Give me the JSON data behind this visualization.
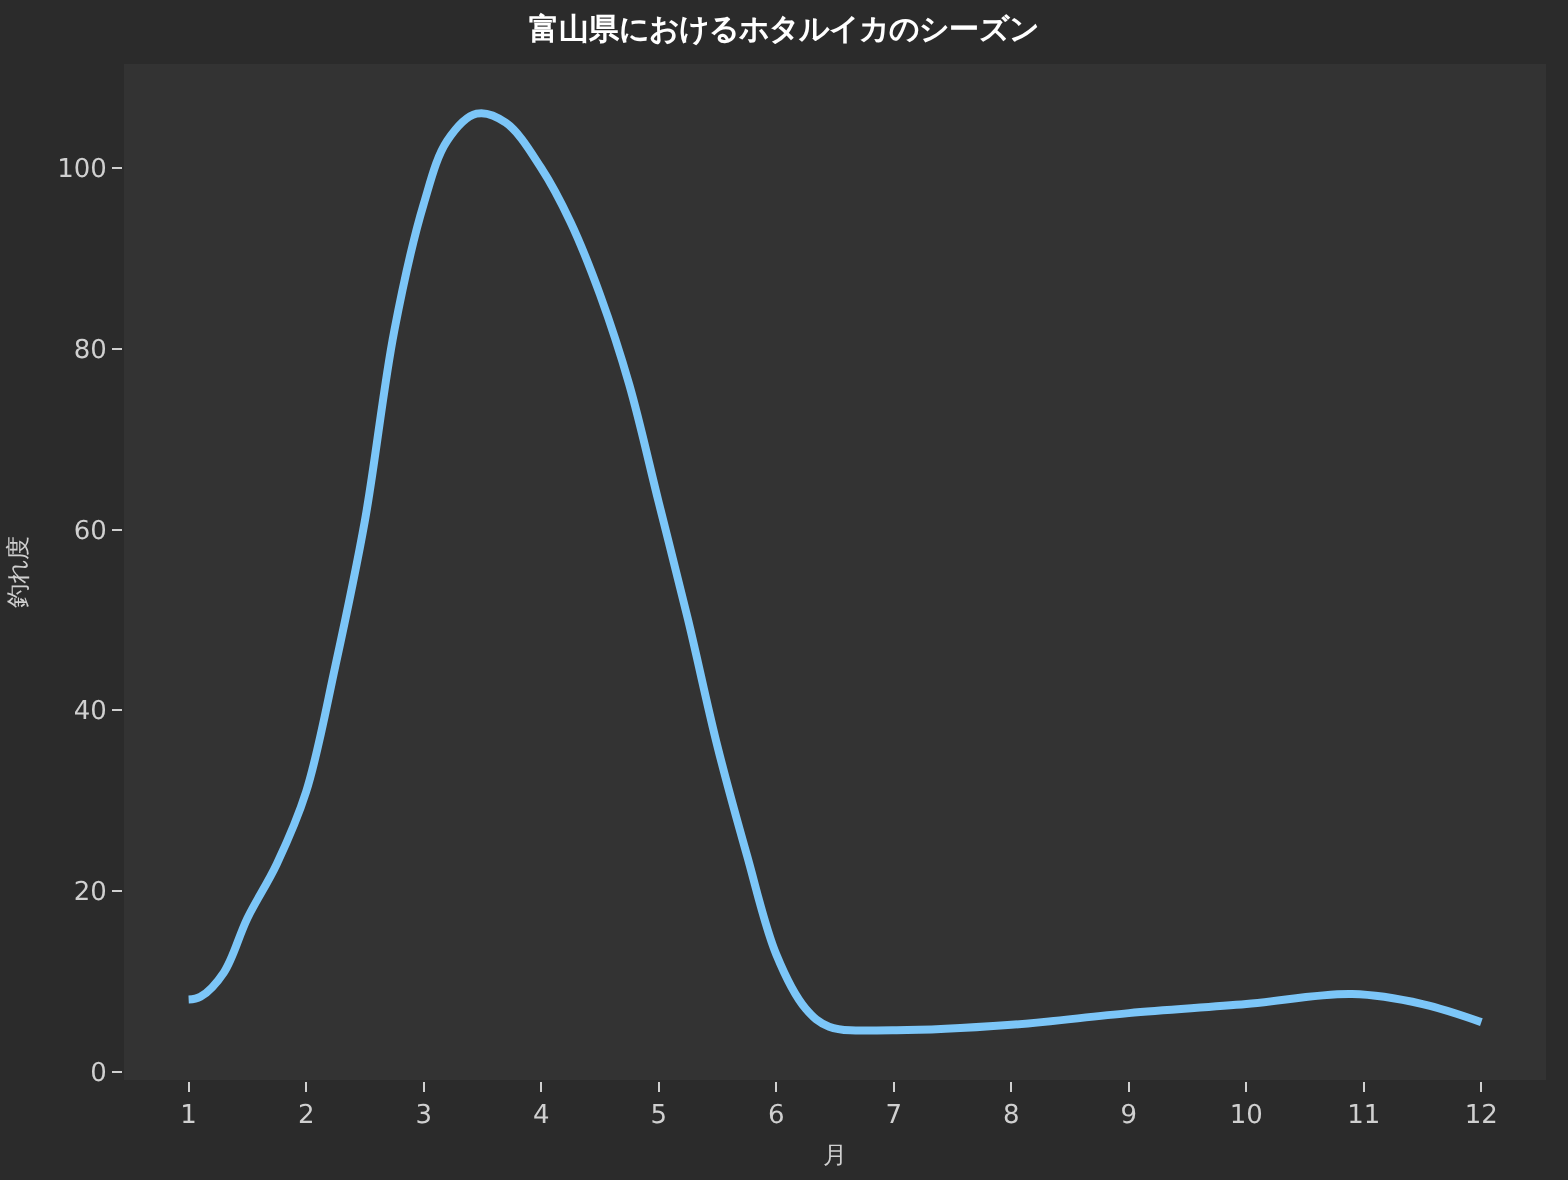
{
  "chart_data": {
    "type": "line",
    "title": "富山県におけるホタルイカのシーズン",
    "xlabel": "月",
    "ylabel": "釣れ度",
    "series": [
      {
        "color": "#7cc6f8",
        "x": [
          1,
          1.1,
          1.3,
          1.5,
          1.75,
          2,
          2.25,
          2.5,
          2.75,
          3,
          3.2,
          3.45,
          3.7,
          4,
          4.25,
          4.5,
          4.75,
          5,
          5.25,
          5.5,
          5.75,
          6,
          6.25,
          6.45,
          7,
          8,
          9,
          10,
          10.9,
          11.5,
          12
        ],
        "values": [
          8,
          8.3,
          11,
          17,
          23,
          31,
          45,
          61,
          82,
          96,
          103,
          106,
          105,
          100,
          94,
          86,
          76,
          63,
          50,
          36,
          24,
          13,
          7,
          5,
          4.6,
          5.2,
          6.5,
          7.5,
          8.6,
          7.5,
          5.5
        ]
      }
    ],
    "xlim": [
      0.45,
      12.55
    ],
    "xticks": [
      1,
      2,
      3,
      4,
      5,
      6,
      7,
      8,
      9,
      10,
      11,
      12
    ],
    "ylim": [
      -0.9,
      111.5
    ],
    "yticks": [
      0,
      20,
      40,
      60,
      80,
      100
    ],
    "marker": "none",
    "line_style": "solid"
  }
}
